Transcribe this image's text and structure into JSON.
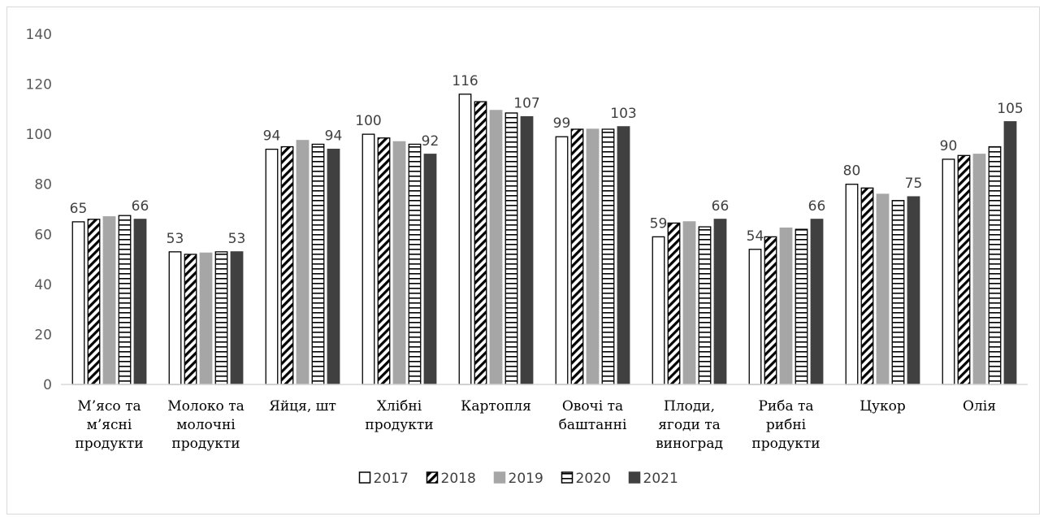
{
  "chart_data": {
    "type": "bar",
    "title": "",
    "xlabel": "",
    "ylabel": "",
    "ylim": [
      0,
      140
    ],
    "yticks": [
      0,
      20,
      40,
      60,
      80,
      100,
      120,
      140
    ],
    "grid": false,
    "legend_position": "bottom",
    "categories": [
      [
        "М’ясо та",
        "м’ясні",
        "продукти"
      ],
      [
        "Молоко та",
        "молочні",
        "продукти"
      ],
      [
        "Яйця, шт"
      ],
      [
        "Хлібні",
        "продукти"
      ],
      [
        "Картопля"
      ],
      [
        "Овочі та",
        "баштанні"
      ],
      [
        "Плоди,",
        "ягоди та",
        "виноград"
      ],
      [
        "Риба та",
        "рибні",
        "продукти"
      ],
      [
        "Цукор"
      ],
      [
        "Олія"
      ]
    ],
    "series": [
      {
        "name": "2017",
        "pattern": "white",
        "values": [
          65,
          53,
          94,
          100,
          116,
          99,
          59,
          54,
          80,
          90
        ],
        "labels": [
          "65",
          "53",
          "94",
          "100",
          "116",
          "99",
          "59",
          "54",
          "80",
          "90"
        ]
      },
      {
        "name": "2018",
        "pattern": "diagonal",
        "values": [
          66,
          52,
          95,
          98.5,
          113,
          102,
          64.5,
          59,
          78.5,
          91.5
        ],
        "labels": [
          "",
          "",
          "",
          "",
          "",
          "",
          "",
          "",
          "",
          ""
        ]
      },
      {
        "name": "2019",
        "pattern": "gray",
        "values": [
          67,
          52.5,
          97.5,
          97,
          109.5,
          102,
          65,
          62.5,
          76,
          92
        ],
        "labels": [
          "",
          "",
          "",
          "",
          "",
          "",
          "",
          "",
          "",
          ""
        ]
      },
      {
        "name": "2020",
        "pattern": "horizontal",
        "values": [
          67.5,
          53,
          96,
          96,
          108.5,
          102,
          63,
          62,
          73.5,
          95
        ],
        "labels": [
          "",
          "",
          "",
          "",
          "",
          "",
          "",
          "",
          "",
          ""
        ]
      },
      {
        "name": "2021",
        "pattern": "dark",
        "values": [
          66,
          53,
          94,
          92,
          107,
          103,
          66,
          66,
          75,
          105
        ],
        "labels": [
          "66",
          "53",
          "94",
          "92",
          "107",
          "103",
          "66",
          "66",
          "75",
          "105"
        ]
      }
    ],
    "colors": {
      "white": "#ffffff",
      "gray": "#a6a6a6",
      "dark": "#404040",
      "stroke": "#000000",
      "axis": "#d9d9d9"
    }
  }
}
